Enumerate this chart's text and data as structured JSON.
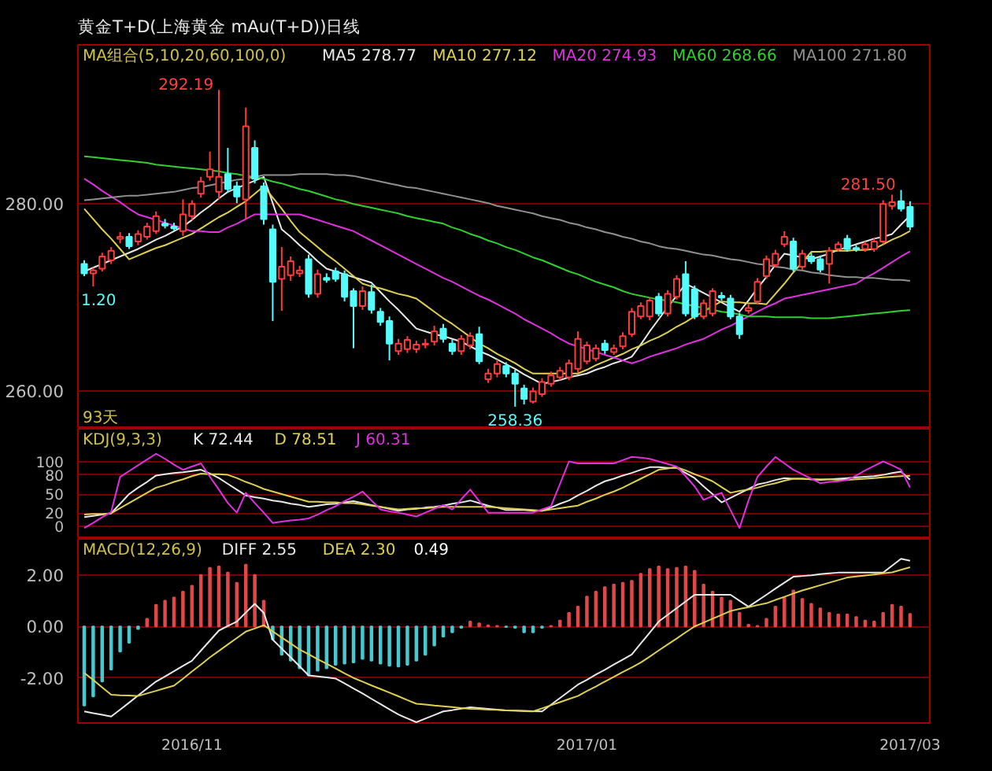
{
  "chart_data": [
    {
      "type": "candlestick",
      "title": "黄金T+D(上海黄金 mAu(T+D))日线",
      "legend_title": "MA组合(5,10,20,60,100,0)",
      "legend": "top",
      "grid": "y",
      "tick_labels": "y",
      "categories": [
        null,
        null,
        null,
        null,
        null,
        null,
        null,
        null,
        null,
        null,
        null,
        null,
        "2016/11",
        null,
        null,
        null,
        null,
        null,
        null,
        null,
        null,
        null,
        null,
        null,
        null,
        null,
        null,
        null,
        null,
        null,
        null,
        null,
        null,
        null,
        null,
        null,
        null,
        null,
        null,
        null,
        null,
        null,
        null,
        null,
        null,
        null,
        null,
        null,
        null,
        null,
        null,
        null,
        null,
        null,
        null,
        null,
        "2017/01",
        null,
        null,
        null,
        null,
        null,
        null,
        null,
        null,
        null,
        null,
        null,
        null,
        null,
        null,
        null,
        null,
        null,
        null,
        null,
        null,
        null,
        null,
        null,
        null,
        null,
        null,
        null,
        null,
        null,
        null,
        null,
        null,
        null,
        null,
        null,
        "2017/03"
      ],
      "ylim": [
        256,
        297
      ],
      "yticks": [
        {
          "value": 260,
          "label": "260.00"
        },
        {
          "value": 280,
          "label": "280.00"
        }
      ],
      "ohlc": [
        [
          273.6,
          274.0,
          272.3,
          272.6
        ],
        [
          272.6,
          273.2,
          271.2,
          272.9
        ],
        [
          273.1,
          274.8,
          272.8,
          274.4
        ],
        [
          274.0,
          275.4,
          273.6,
          275.0
        ],
        [
          276.3,
          277.0,
          275.8,
          276.5
        ],
        [
          276.5,
          276.9,
          275.2,
          275.5
        ],
        [
          276.0,
          277.2,
          275.6,
          276.8
        ],
        [
          276.5,
          278.0,
          276.2,
          277.6
        ],
        [
          277.1,
          279.2,
          276.8,
          278.7
        ],
        [
          277.9,
          278.4,
          277.4,
          277.7
        ],
        [
          277.6,
          278.0,
          277.2,
          277.4
        ],
        [
          277.1,
          280.5,
          276.6,
          278.9
        ],
        [
          278.7,
          280.4,
          278.3,
          280.0
        ],
        [
          281.1,
          282.9,
          280.7,
          282.4
        ],
        [
          282.9,
          285.6,
          282.5,
          283.7
        ],
        [
          281.3,
          292.19,
          280.5,
          282.9
        ],
        [
          283.2,
          286.0,
          281.2,
          281.6
        ],
        [
          281.9,
          282.4,
          280.1,
          280.8
        ],
        [
          280.5,
          290.3,
          278.4,
          288.3
        ],
        [
          286.0,
          286.8,
          282.2,
          282.7
        ],
        [
          281.9,
          282.3,
          277.8,
          278.4
        ],
        [
          277.3,
          277.8,
          267.5,
          271.7
        ],
        [
          272.0,
          275.4,
          268.6,
          273.3
        ],
        [
          272.4,
          274.4,
          271.8,
          273.9
        ],
        [
          272.6,
          273.4,
          272.2,
          272.9
        ],
        [
          274.1,
          274.6,
          270.0,
          270.4
        ],
        [
          270.4,
          273.0,
          270.0,
          272.5
        ],
        [
          272.1,
          272.6,
          271.6,
          271.9
        ],
        [
          272.8,
          273.2,
          271.7,
          272.0
        ],
        [
          272.5,
          272.9,
          269.6,
          270.1
        ],
        [
          270.7,
          271.0,
          264.6,
          269.1
        ],
        [
          269.1,
          271.2,
          268.7,
          270.7
        ],
        [
          270.6,
          271.4,
          268.3,
          268.7
        ],
        [
          268.5,
          268.9,
          267.0,
          267.4
        ],
        [
          267.5,
          268.0,
          263.3,
          265.1
        ],
        [
          264.3,
          265.6,
          263.9,
          265.1
        ],
        [
          264.5,
          265.9,
          264.1,
          265.5
        ],
        [
          264.5,
          265.4,
          264.1,
          265.0
        ],
        [
          265.0,
          265.6,
          264.6,
          265.1
        ],
        [
          265.3,
          267.0,
          264.9,
          266.4
        ],
        [
          266.7,
          267.2,
          265.2,
          265.6
        ],
        [
          265.1,
          265.5,
          263.9,
          264.3
        ],
        [
          264.3,
          266.0,
          263.9,
          265.6
        ],
        [
          264.9,
          266.3,
          264.5,
          265.9
        ],
        [
          266.1,
          266.9,
          262.9,
          263.2
        ],
        [
          261.3,
          262.4,
          260.9,
          261.9
        ],
        [
          261.9,
          263.4,
          261.5,
          262.9
        ],
        [
          262.7,
          263.1,
          261.5,
          261.9
        ],
        [
          261.9,
          262.3,
          258.36,
          260.8
        ],
        [
          260.3,
          260.7,
          258.6,
          259.2
        ],
        [
          258.9,
          260.4,
          258.7,
          260.0
        ],
        [
          259.7,
          261.4,
          259.4,
          261.0
        ],
        [
          260.8,
          262.1,
          260.5,
          261.7
        ],
        [
          261.5,
          262.6,
          261.2,
          262.2
        ],
        [
          261.5,
          263.4,
          261.2,
          263.0
        ],
        [
          262.4,
          266.4,
          262.0,
          265.6
        ],
        [
          263.2,
          265.3,
          262.9,
          264.9
        ],
        [
          263.5,
          265.0,
          263.2,
          264.6
        ],
        [
          265.1,
          265.5,
          264.0,
          264.4
        ],
        [
          264.2,
          265.0,
          263.9,
          264.6
        ],
        [
          264.8,
          266.3,
          264.5,
          265.9
        ],
        [
          266.1,
          268.9,
          265.8,
          268.5
        ],
        [
          268.0,
          269.5,
          267.7,
          269.1
        ],
        [
          268.0,
          270.0,
          267.6,
          269.7
        ],
        [
          270.1,
          270.5,
          268.0,
          268.3
        ],
        [
          268.3,
          270.8,
          268.0,
          270.4
        ],
        [
          270.1,
          272.4,
          269.8,
          272.0
        ],
        [
          272.5,
          273.9,
          268.0,
          268.3
        ],
        [
          270.9,
          271.3,
          267.7,
          268.0
        ],
        [
          268.0,
          269.8,
          267.7,
          269.4
        ],
        [
          268.3,
          271.0,
          268.0,
          270.7
        ],
        [
          270.2,
          270.6,
          269.7,
          270.0
        ],
        [
          269.9,
          270.3,
          267.7,
          268.0
        ],
        [
          268.0,
          268.4,
          265.6,
          266.1
        ],
        [
          268.6,
          269.3,
          268.3,
          268.9
        ],
        [
          269.6,
          272.1,
          269.3,
          271.7
        ],
        [
          272.3,
          274.5,
          272.0,
          274.1
        ],
        [
          273.5,
          275.1,
          273.2,
          274.7
        ],
        [
          275.7,
          277.1,
          275.4,
          276.5
        ],
        [
          276.0,
          276.4,
          272.8,
          273.1
        ],
        [
          273.3,
          275.1,
          273.0,
          274.7
        ],
        [
          274.4,
          274.8,
          273.6,
          273.9
        ],
        [
          274.1,
          274.5,
          272.7,
          273.0
        ],
        [
          273.6,
          275.4,
          271.5,
          275.0
        ],
        [
          275.2,
          276.0,
          274.9,
          275.7
        ],
        [
          276.3,
          276.7,
          274.9,
          275.2
        ],
        [
          275.3,
          275.6,
          274.9,
          275.2
        ],
        [
          275.2,
          276.0,
          274.9,
          275.7
        ],
        [
          275.2,
          276.4,
          274.9,
          276.0
        ],
        [
          276.0,
          280.4,
          275.7,
          280.0
        ],
        [
          279.8,
          281.0,
          279.4,
          280.2
        ],
        [
          280.3,
          281.5,
          279.2,
          279.5
        ],
        [
          279.7,
          280.3,
          277.2,
          277.6
        ]
      ],
      "colors": [
        "#54fcfc",
        "#ff3c3c",
        "#ff3c3c",
        "#ff3c3c",
        "#ff3c3c",
        "#54fcfc",
        "#ff3c3c",
        "#ff3c3c",
        "#ff3c3c",
        "#54fcfc",
        "#54fcfc",
        "#ff3c3c",
        "#ff3c3c",
        "#ff3c3c",
        "#ff3c3c",
        "#ff3c3c",
        "#54fcfc",
        "#54fcfc",
        "#ff3c3c",
        "#54fcfc",
        "#54fcfc",
        "#54fcfc",
        "#ff3c3c",
        "#ff3c3c",
        "#ff3c3c",
        "#54fcfc",
        "#ff3c3c",
        "#54fcfc",
        "#54fcfc",
        "#54fcfc",
        "#54fcfc",
        "#ff3c3c",
        "#54fcfc",
        "#54fcfc",
        "#54fcfc",
        "#ff3c3c",
        "#ff3c3c",
        "#ff3c3c",
        "#ff3c3c",
        "#ff3c3c",
        "#54fcfc",
        "#54fcfc",
        "#ff3c3c",
        "#ff3c3c",
        "#54fcfc",
        "#ff3c3c",
        "#ff3c3c",
        "#54fcfc",
        "#54fcfc",
        "#54fcfc",
        "#ff3c3c",
        "#ff3c3c",
        "#ff3c3c",
        "#ff3c3c",
        "#ff3c3c",
        "#ff3c3c",
        "#ff3c3c",
        "#ff3c3c",
        "#54fcfc",
        "#ff3c3c",
        "#ff3c3c",
        "#ff3c3c",
        "#ff3c3c",
        "#ff3c3c",
        "#54fcfc",
        "#ff3c3c",
        "#ff3c3c",
        "#54fcfc",
        "#54fcfc",
        "#ff3c3c",
        "#ff3c3c",
        "#54fcfc",
        "#54fcfc",
        "#54fcfc",
        "#ff3c3c",
        "#ff3c3c",
        "#ff3c3c",
        "#ff3c3c",
        "#ff3c3c",
        "#54fcfc",
        "#ff3c3c",
        "#54fcfc",
        "#54fcfc",
        "#ff3c3c",
        "#ff3c3c",
        "#54fcfc",
        "#54fcfc",
        "#ff3c3c",
        "#ff3c3c",
        "#ff3c3c",
        "#ff3c3c",
        "#54fcfc",
        "#54fcfc"
      ],
      "series": [
        {
          "type": "line",
          "name": "MA5 278.77",
          "color": "#e8e8e8",
          "values": [
            272.8,
            273.2,
            273.6,
            274.0,
            274.4,
            274.8,
            275.2,
            275.7,
            276.2,
            276.6,
            277.1,
            277.6,
            278.3,
            279.1,
            279.8,
            280.6,
            281.3,
            281.7,
            282.1,
            282.5,
            282.9,
            280.1,
            277.3,
            276.5,
            275.6,
            274.8,
            273.9,
            273.1,
            272.8,
            272.5,
            272.2,
            271.9,
            271.6,
            270.6,
            269.6,
            268.7,
            267.7,
            266.7,
            266.4,
            266.1,
            265.9,
            265.6,
            265.3,
            264.8,
            264.3,
            263.9,
            263.4,
            262.9,
            262.4,
            261.8,
            261.3,
            260.8,
            261.0,
            261.2,
            261.5,
            261.7,
            261.9,
            262.3,
            262.6,
            263.0,
            263.3,
            263.7,
            265.0,
            266.4,
            267.7,
            269.0,
            270.2,
            271.5,
            271.0,
            270.5,
            270.0,
            269.5,
            269.0,
            268.5,
            269.7,
            271.0,
            272.2,
            273.5,
            274.7,
            274.5,
            274.3,
            274.1,
            274.4,
            274.7,
            275.1,
            275.4,
            275.7,
            276.0,
            276.3,
            276.5,
            276.8,
            277.8,
            278.77
          ]
        },
        {
          "type": "line",
          "name": "MA10 277.12",
          "color": "#e0d050",
          "values": [
            279.5,
            278.4,
            277.3,
            276.3,
            275.2,
            274.1,
            274.5,
            274.9,
            275.3,
            275.6,
            276.0,
            276.4,
            276.8,
            277.4,
            278.0,
            278.6,
            279.1,
            279.7,
            280.3,
            281.1,
            281.9,
            280.7,
            279.5,
            278.2,
            277.0,
            276.2,
            275.4,
            274.6,
            273.9,
            273.1,
            272.3,
            271.5,
            271.2,
            271.0,
            270.7,
            270.4,
            270.2,
            269.9,
            269.2,
            268.5,
            267.8,
            267.2,
            266.5,
            265.8,
            265.1,
            264.6,
            264.0,
            263.5,
            263.0,
            262.4,
            261.9,
            261.9,
            261.9,
            261.9,
            261.9,
            261.9,
            262.3,
            262.8,
            263.2,
            263.6,
            264.0,
            264.5,
            264.9,
            265.4,
            265.8,
            266.3,
            266.9,
            267.4,
            268.0,
            268.5,
            269.1,
            269.6,
            269.5,
            269.5,
            269.4,
            269.4,
            269.3,
            270.4,
            271.5,
            272.7,
            273.8,
            274.9,
            274.9,
            275.0,
            275.0,
            275.0,
            275.1,
            275.1,
            275.2,
            275.7,
            276.2,
            276.6,
            277.12
          ]
        },
        {
          "type": "line",
          "name": "MA20 274.93",
          "color": "#e030e0",
          "values": [
            282.7,
            282.1,
            281.4,
            280.8,
            280.2,
            279.5,
            278.9,
            278.6,
            278.3,
            278.0,
            277.7,
            277.4,
            277.1,
            277.1,
            277.0,
            277.0,
            277.5,
            277.9,
            278.4,
            278.9,
            278.9,
            278.9,
            278.9,
            278.9,
            278.9,
            278.6,
            278.3,
            278.0,
            277.7,
            277.4,
            277.1,
            276.6,
            276.1,
            275.6,
            275.1,
            274.6,
            274.1,
            273.6,
            273.1,
            272.6,
            272.1,
            271.7,
            271.2,
            270.7,
            270.2,
            269.8,
            269.3,
            268.8,
            268.3,
            267.7,
            267.2,
            266.7,
            266.2,
            265.6,
            265.1,
            264.8,
            264.5,
            264.2,
            263.9,
            263.6,
            263.3,
            263.0,
            263.3,
            263.7,
            264.0,
            264.3,
            264.6,
            265.0,
            265.3,
            265.6,
            266.1,
            266.6,
            267.0,
            267.5,
            268.0,
            268.5,
            269.0,
            269.4,
            269.9,
            270.1,
            270.3,
            270.5,
            270.7,
            270.9,
            271.1,
            271.3,
            271.5,
            272.1,
            272.6,
            273.2,
            273.8,
            274.4,
            274.93
          ]
        },
        {
          "type": "line",
          "name": "MA60 268.66",
          "color": "#30d030",
          "values": [
            285.1,
            285.0,
            284.9,
            284.8,
            284.7,
            284.6,
            284.5,
            284.4,
            284.2,
            284.1,
            284.0,
            283.9,
            283.8,
            283.7,
            283.6,
            283.5,
            283.3,
            283.2,
            283.0,
            282.9,
            282.7,
            282.4,
            282.2,
            281.9,
            281.6,
            281.4,
            281.1,
            280.8,
            280.5,
            280.3,
            280.0,
            279.8,
            279.6,
            279.4,
            279.2,
            279.0,
            278.7,
            278.5,
            278.3,
            278.1,
            277.9,
            277.5,
            277.2,
            276.8,
            276.5,
            276.1,
            275.8,
            275.4,
            275.1,
            274.7,
            274.3,
            274.0,
            273.6,
            273.2,
            272.8,
            272.5,
            272.1,
            271.7,
            271.4,
            271.1,
            270.7,
            270.4,
            270.2,
            270.0,
            269.8,
            269.7,
            269.5,
            269.3,
            269.1,
            268.9,
            268.7,
            268.5,
            268.4,
            268.2,
            268.0,
            268.0,
            268.0,
            267.9,
            267.9,
            267.9,
            267.9,
            267.8,
            267.8,
            267.8,
            267.9,
            268.0,
            268.1,
            268.2,
            268.3,
            268.4,
            268.5,
            268.6,
            268.66
          ]
        },
        {
          "type": "line",
          "name": "MA100 271.80",
          "color": "#909090",
          "values": [
            280.4,
            280.5,
            280.6,
            280.7,
            280.8,
            280.9,
            280.9,
            281.0,
            281.1,
            281.2,
            281.3,
            281.5,
            281.7,
            281.8,
            282.0,
            282.2,
            282.4,
            282.6,
            282.7,
            282.9,
            283.1,
            283.1,
            283.1,
            283.1,
            283.2,
            283.2,
            283.2,
            283.2,
            283.1,
            283.1,
            283.0,
            282.8,
            282.6,
            282.4,
            282.2,
            282.0,
            281.8,
            281.7,
            281.5,
            281.3,
            281.1,
            280.9,
            280.7,
            280.5,
            280.3,
            280.1,
            279.8,
            279.6,
            279.4,
            279.2,
            279.0,
            278.7,
            278.5,
            278.3,
            278.0,
            277.8,
            277.5,
            277.3,
            277.0,
            276.8,
            276.5,
            276.3,
            276.0,
            275.8,
            275.5,
            275.3,
            275.2,
            275.0,
            274.8,
            274.6,
            274.5,
            274.3,
            274.1,
            274.0,
            273.8,
            273.6,
            273.5,
            273.3,
            273.2,
            273.0,
            272.9,
            272.7,
            272.6,
            272.4,
            272.3,
            272.2,
            272.2,
            272.1,
            272.1,
            272.0,
            271.9,
            271.9,
            271.8
          ]
        }
      ],
      "annotations": [
        "93天",
        "292.19",
        "281.50",
        "258.36",
        "1.20"
      ]
    },
    {
      "type": "line",
      "legend_title": "KDJ(9,3,3)",
      "legend": "top left",
      "grid": "y",
      "tick_labels": "y",
      "categories": [
        null,
        null,
        null,
        null,
        null,
        null,
        null,
        null,
        null,
        null,
        null,
        null,
        "2016/11",
        null,
        null,
        null,
        null,
        null,
        null,
        null,
        null,
        null,
        null,
        null,
        null,
        null,
        null,
        null,
        null,
        null,
        null,
        null,
        null,
        null,
        null,
        null,
        null,
        null,
        null,
        null,
        null,
        null,
        null,
        null,
        null,
        null,
        null,
        null,
        null,
        null,
        null,
        null,
        null,
        null,
        null,
        null,
        "2017/01",
        null,
        null,
        null,
        null,
        null,
        null,
        null,
        null,
        null,
        null,
        null,
        null,
        null,
        null,
        null,
        null,
        null,
        null,
        null,
        null,
        null,
        null,
        null,
        null,
        null,
        null,
        null,
        null,
        null,
        null,
        null,
        null,
        null,
        null,
        null,
        "2017/03"
      ],
      "ylim": [
        -20,
        152
      ],
      "yticks": [
        0,
        20,
        50,
        80,
        100
      ],
      "series": [
        {
          "name": "K 72.44",
          "color": "#e8e8e8",
          "values": [
            14,
            16,
            18,
            20,
            35,
            50,
            60,
            69,
            79,
            81,
            83,
            84,
            86,
            88,
            82,
            75,
            66,
            57,
            48,
            45,
            43,
            40,
            38,
            35,
            33,
            30,
            32,
            34,
            35,
            37,
            39,
            36,
            33,
            30,
            27,
            24,
            26,
            27,
            29,
            30,
            32,
            35,
            37,
            40,
            36,
            32,
            29,
            25,
            25,
            25,
            24,
            24,
            29,
            35,
            40,
            48,
            55,
            63,
            70,
            74,
            79,
            83,
            88,
            92,
            92,
            91,
            91,
            83,
            75,
            62,
            50,
            37,
            44,
            51,
            58,
            65,
            68,
            72,
            75,
            74,
            74,
            73,
            72,
            73,
            74,
            75,
            76,
            77,
            78,
            80,
            83,
            85,
            72.44
          ]
        },
        {
          "name": "D 78.51",
          "color": "#e0d050",
          "values": [
            18,
            19,
            19,
            20,
            28,
            36,
            44,
            52,
            60,
            64,
            69,
            73,
            78,
            82,
            81,
            81,
            80,
            75,
            69,
            64,
            58,
            54,
            50,
            46,
            42,
            38,
            38,
            37,
            37,
            36,
            36,
            34,
            32,
            30,
            28,
            26,
            27,
            28,
            28,
            29,
            30,
            30,
            30,
            30,
            30,
            30,
            29,
            28,
            27,
            26,
            25,
            24,
            26,
            28,
            30,
            32,
            38,
            43,
            49,
            54,
            60,
            67,
            74,
            81,
            88,
            90,
            92,
            87,
            81,
            76,
            70,
            61,
            52,
            55,
            57,
            60,
            64,
            67,
            71,
            74,
            74,
            73,
            73,
            73,
            72,
            72,
            73,
            74,
            75,
            76,
            77,
            78,
            78.51
          ]
        },
        {
          "name": "J 60.31",
          "color": "#e030e0",
          "values": [
            -3,
            5,
            14,
            22,
            77,
            86,
            95,
            104,
            113,
            105,
            96,
            88,
            93,
            98,
            77,
            57,
            36,
            21,
            52,
            36,
            21,
            5,
            7,
            9,
            10,
            12,
            18,
            25,
            31,
            39,
            46,
            54,
            40,
            26,
            23,
            21,
            18,
            15,
            21,
            27,
            33,
            26,
            42,
            57,
            39,
            21,
            21,
            21,
            21,
            21,
            21,
            26,
            31,
            66,
            101,
            98,
            98,
            98,
            98,
            98,
            103,
            108,
            107,
            105,
            101,
            97,
            93,
            78,
            62,
            41,
            47,
            52,
            25,
            -3,
            40,
            77,
            93,
            108,
            98,
            88,
            81,
            74,
            67,
            69,
            70,
            72,
            79,
            87,
            94,
            101,
            95,
            88,
            60.31
          ]
        }
      ]
    },
    {
      "type": "bar",
      "legend_title": "MACD(12,26,9)",
      "legend": "top left",
      "grid": "y",
      "categories": [
        null,
        null,
        null,
        null,
        null,
        null,
        null,
        null,
        null,
        null,
        null,
        null,
        "2016/11",
        null,
        null,
        null,
        null,
        null,
        null,
        null,
        null,
        null,
        null,
        null,
        null,
        null,
        null,
        null,
        null,
        null,
        null,
        null,
        null,
        null,
        null,
        null,
        null,
        null,
        null,
        null,
        null,
        null,
        null,
        null,
        null,
        null,
        null,
        null,
        null,
        null,
        null,
        null,
        null,
        null,
        null,
        null,
        "2017/01",
        null,
        null,
        null,
        null,
        null,
        null,
        null,
        null,
        null,
        null,
        null,
        null,
        null,
        null,
        null,
        null,
        null,
        null,
        null,
        null,
        null,
        null,
        null,
        null,
        null,
        null,
        null,
        null,
        null,
        null,
        null,
        null,
        null,
        null,
        null,
        "2017/03"
      ],
      "ylim": [
        -3.75,
        3.4
      ],
      "yticks": [
        {
          "value": -2,
          "label": "-2.00"
        },
        {
          "value": 0,
          "label": "0.00"
        },
        {
          "value": 2,
          "label": "2.00"
        }
      ],
      "series": [
        {
          "type": "bar",
          "values": [
            -3.07,
            -2.72,
            -2.14,
            -1.67,
            -0.98,
            -0.63,
            -0.1,
            0.3,
            0.84,
            1.0,
            1.12,
            1.35,
            1.58,
            2.0,
            2.28,
            2.33,
            2.09,
            1.7,
            2.4,
            2.0,
            1.0,
            -0.5,
            -1.1,
            -1.33,
            -1.63,
            -1.9,
            -1.72,
            -1.63,
            -1.49,
            -1.44,
            -1.4,
            -1.26,
            -1.33,
            -1.44,
            -1.53,
            -1.56,
            -1.49,
            -1.33,
            -1.1,
            -0.74,
            -0.4,
            -0.23,
            -0.05,
            0.19,
            0.12,
            0.05,
            0.02,
            -0.02,
            -0.05,
            -0.23,
            -0.23,
            -0.05,
            0.02,
            0.23,
            0.53,
            0.77,
            1.16,
            1.35,
            1.53,
            1.63,
            1.7,
            1.77,
            2.05,
            2.23,
            2.33,
            2.23,
            2.28,
            2.33,
            2.16,
            1.63,
            1.35,
            1.12,
            1.0,
            0.53,
            0.07,
            0.02,
            0.3,
            0.77,
            1.12,
            1.4,
            1.07,
            0.88,
            0.7,
            0.53,
            0.47,
            0.47,
            0.37,
            0.23,
            0.19,
            0.53,
            0.84,
            0.77,
            0.49
          ],
          "colors": [
            "#48c8d0",
            "#48c8d0",
            "#48c8d0",
            "#48c8d0",
            "#48c8d0",
            "#48c8d0",
            "#48c8d0",
            "#e04848",
            "#e04848",
            "#e04848",
            "#e04848",
            "#e04848",
            "#e04848",
            "#e04848",
            "#e04848",
            "#e04848",
            "#e04848",
            "#e04848",
            "#e04848",
            "#e04848",
            "#e04848",
            "#48c8d0",
            "#48c8d0",
            "#48c8d0",
            "#48c8d0",
            "#48c8d0",
            "#48c8d0",
            "#48c8d0",
            "#48c8d0",
            "#48c8d0",
            "#48c8d0",
            "#48c8d0",
            "#48c8d0",
            "#48c8d0",
            "#48c8d0",
            "#48c8d0",
            "#48c8d0",
            "#48c8d0",
            "#48c8d0",
            "#48c8d0",
            "#48c8d0",
            "#48c8d0",
            "#48c8d0",
            "#e04848",
            "#e04848",
            "#e04848",
            "#e04848",
            "#48c8d0",
            "#48c8d0",
            "#48c8d0",
            "#48c8d0",
            "#48c8d0",
            "#e04848",
            "#e04848",
            "#e04848",
            "#e04848",
            "#e04848",
            "#e04848",
            "#e04848",
            "#e04848",
            "#e04848",
            "#e04848",
            "#e04848",
            "#e04848",
            "#e04848",
            "#e04848",
            "#e04848",
            "#e04848",
            "#e04848",
            "#e04848",
            "#e04848",
            "#e04848",
            "#e04848",
            "#e04848",
            "#e04848",
            "#e04848",
            "#e04848",
            "#e04848",
            "#e04848",
            "#e04848",
            "#e04848",
            "#e04848",
            "#e04848",
            "#e04848",
            "#e04848",
            "#e04848",
            "#e04848",
            "#e04848",
            "#e04848",
            "#e04848",
            "#e04848",
            "#e04848",
            "#e04848"
          ]
        },
        {
          "type": "line",
          "name": "DIFF 2.55",
          "color": "#e8e8e8",
          "values": [
            -3.3,
            -3.37,
            -3.43,
            -3.5,
            -3.23,
            -2.96,
            -2.68,
            -2.41,
            -2.14,
            -1.94,
            -1.74,
            -1.53,
            -1.33,
            -0.94,
            -0.55,
            -0.16,
            0.02,
            0.19,
            0.54,
            0.88,
            0.53,
            -0.51,
            -0.86,
            -1.2,
            -1.55,
            -1.9,
            -1.94,
            -1.98,
            -2.02,
            -2.21,
            -2.41,
            -2.6,
            -2.81,
            -3.01,
            -3.22,
            -3.42,
            -3.57,
            -3.72,
            -3.58,
            -3.44,
            -3.3,
            -3.25,
            -3.19,
            -3.14,
            -3.17,
            -3.2,
            -3.23,
            -3.26,
            -3.27,
            -3.28,
            -3.29,
            -3.3,
            -3.04,
            -2.78,
            -2.52,
            -2.26,
            -2.07,
            -1.87,
            -1.68,
            -1.48,
            -1.29,
            -1.09,
            -0.66,
            -0.24,
            0.19,
            0.45,
            0.71,
            0.97,
            1.23,
            1.23,
            1.23,
            1.23,
            1.23,
            1.0,
            0.77,
            1.0,
            1.23,
            1.47,
            1.7,
            1.93,
            1.96,
            1.99,
            2.03,
            2.06,
            2.09,
            2.09,
            2.09,
            2.09,
            2.09,
            2.09,
            2.36,
            2.63,
            2.55
          ]
        },
        {
          "type": "line",
          "name": "DEA 2.30",
          "color": "#e0d050",
          "values": [
            -1.8,
            -2.08,
            -2.37,
            -2.65,
            -2.67,
            -2.68,
            -2.7,
            -2.6,
            -2.5,
            -2.4,
            -2.3,
            -2.03,
            -1.75,
            -1.48,
            -1.2,
            -0.95,
            -0.7,
            -0.45,
            -0.2,
            -0.08,
            0.05,
            -0.19,
            -0.43,
            -0.66,
            -0.9,
            -1.08,
            -1.27,
            -1.45,
            -1.63,
            -1.82,
            -2.0,
            -2.14,
            -2.29,
            -2.43,
            -2.57,
            -2.71,
            -2.86,
            -3.0,
            -3.03,
            -3.07,
            -3.1,
            -3.13,
            -3.17,
            -3.2,
            -3.21,
            -3.23,
            -3.24,
            -3.26,
            -3.27,
            -3.29,
            -3.3,
            -3.18,
            -3.06,
            -2.94,
            -2.82,
            -2.7,
            -2.51,
            -2.33,
            -2.14,
            -1.96,
            -1.77,
            -1.59,
            -1.4,
            -1.17,
            -0.93,
            -0.7,
            -0.47,
            -0.23,
            0.0,
            0.15,
            0.3,
            0.45,
            0.6,
            0.68,
            0.75,
            0.83,
            0.9,
            1.03,
            1.15,
            1.28,
            1.4,
            1.5,
            1.6,
            1.7,
            1.8,
            1.9,
            1.94,
            1.98,
            2.02,
            2.06,
            2.1,
            2.2,
            2.3
          ]
        }
      ],
      "annotations": [
        "0.49"
      ]
    }
  ]
}
